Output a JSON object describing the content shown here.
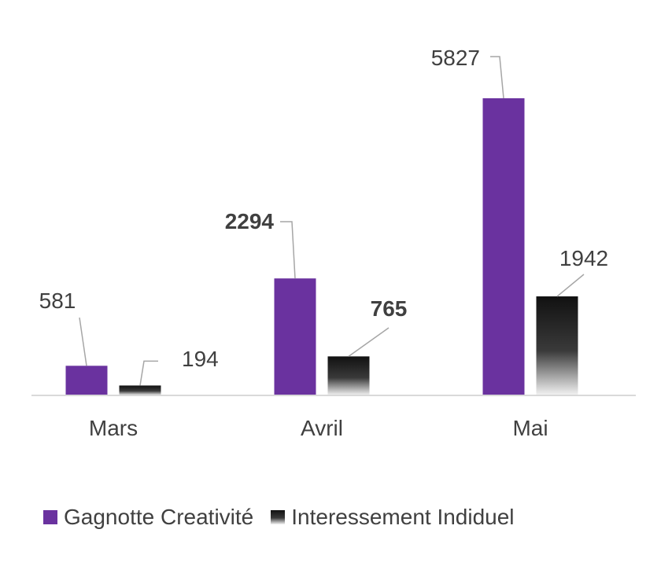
{
  "chart_data": {
    "type": "bar",
    "categories": [
      "Mars",
      "Avril",
      "Mai"
    ],
    "series": [
      {
        "name": "Gagnotte Creativité",
        "values": [
          581,
          2294,
          5827
        ],
        "color": "#6A329F",
        "fill": "solid"
      },
      {
        "name": "Interessement Indiduel",
        "values": [
          194,
          765,
          1942
        ],
        "color": "#222222",
        "fill": "gradient"
      }
    ],
    "bold_labels": [
      [
        false,
        true,
        false
      ],
      [
        false,
        true,
        false
      ]
    ],
    "ylim": [
      0,
      6500
    ],
    "grid": false,
    "legend": "bottom",
    "title": "",
    "xlabel": "",
    "ylabel": ""
  }
}
